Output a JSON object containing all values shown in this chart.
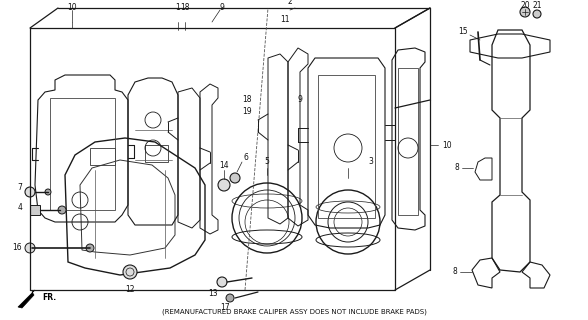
{
  "bg_color": "#f5f5f0",
  "line_color": "#1a1a1a",
  "text_color": "#111111",
  "footnote": "(REMANUFACTURED BRAKE CALIPER ASSY DOES NOT INCLUDE BRAKE PADS)",
  "figsize": [
    5.88,
    3.2
  ],
  "dpi": 100,
  "lw_main": 0.8,
  "lw_thin": 0.5,
  "lw_thick": 1.1
}
